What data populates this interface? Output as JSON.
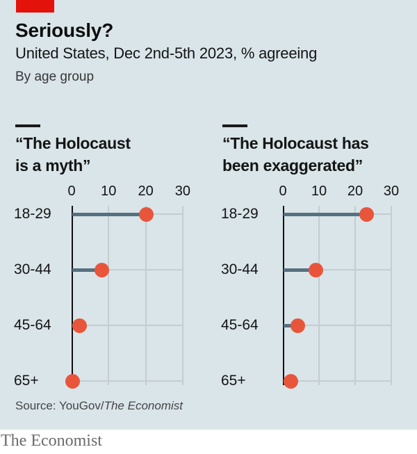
{
  "header": {
    "title": "Seriously?",
    "subtitle": "United States, Dec 2nd-5th 2023, % agreeing",
    "note": "By age group"
  },
  "chart_data": {
    "type": "scatter",
    "subtype": "dot-plot-with-stems",
    "categories": [
      "18-29",
      "30-44",
      "45-64",
      "65+"
    ],
    "x_ticks": [
      0,
      10,
      20,
      30
    ],
    "xlim": [
      0,
      30
    ],
    "grid": true,
    "legend": "none",
    "panels": [
      {
        "title_lines": [
          "“The Holocaust",
          "is a myth”"
        ],
        "values": [
          20,
          8,
          2,
          0
        ]
      },
      {
        "title_lines": [
          "“The Holocaust has",
          "been exaggerated”"
        ],
        "values": [
          23,
          9,
          4,
          2
        ]
      }
    ]
  },
  "colors": {
    "background": "#d9e5e9",
    "red_tab": "#e3120b",
    "dot": "#e8553b",
    "bar": "#567080",
    "gridline": "#c4cdd0"
  },
  "footer": {
    "source_prefix": "Source: YouGov/",
    "source_italic": "The Economist",
    "brand": "The Economist"
  }
}
